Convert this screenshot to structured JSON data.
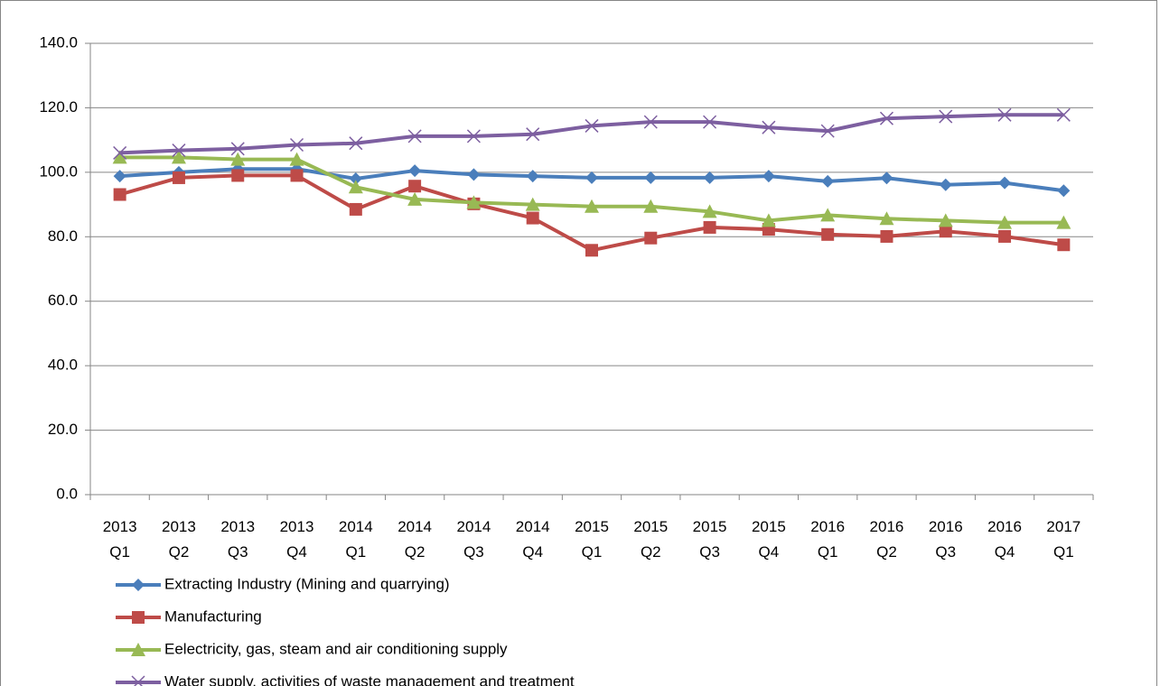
{
  "chart_data": {
    "type": "line",
    "categories": [
      "2013 Q1",
      "2013 Q2",
      "2013 Q3",
      "2013 Q4",
      "2014 Q1",
      "2014 Q2",
      "2014 Q3",
      "2014 Q4",
      "2015 Q1",
      "2015 Q2",
      "2015 Q3",
      "2015 Q4",
      "2016 Q1",
      "2016 Q2",
      "2016 Q3",
      "2016 Q4",
      "2017 Q1"
    ],
    "series": [
      {
        "name": "Extracting Industry (Mining and quarrying)",
        "color": "#4a7ebb",
        "marker": "diamond",
        "values": [
          98.8,
          100,
          101,
          101,
          98,
          100.5,
          99.3,
          98.8,
          98.3,
          98.3,
          98.3,
          98.8,
          97.2,
          98.2,
          96.1,
          96.7,
          94.3
        ]
      },
      {
        "name": "Manufacturing",
        "color": "#be4b48",
        "marker": "square",
        "values": [
          93.1,
          98.3,
          99,
          99,
          88.5,
          95.7,
          90.2,
          85.8,
          75.8,
          79.6,
          82.9,
          82.3,
          80.7,
          80.1,
          81.7,
          80.1,
          77.5
        ]
      },
      {
        "name": "Eelectricity, gas, steam and air conditioning supply",
        "color": "#98b954",
        "marker": "triangle",
        "values": [
          104.6,
          104.6,
          104,
          104,
          95.4,
          91.6,
          90.6,
          90,
          89.4,
          89.4,
          87.8,
          85,
          86.7,
          85.6,
          85,
          84.4,
          84.4
        ]
      },
      {
        "name": "Water supply, activities of waste management and treatment",
        "color": "#7d5fa0",
        "marker": "x",
        "values": [
          106,
          106.8,
          107.3,
          108.5,
          109,
          111.2,
          111.2,
          111.8,
          114.4,
          115.6,
          115.6,
          113.9,
          112.8,
          116.7,
          117.3,
          117.8,
          117.8
        ]
      }
    ],
    "ylim": [
      0,
      140
    ],
    "yticks": [
      {
        "value": 0,
        "label": "0.0"
      },
      {
        "value": 20,
        "label": "20.0"
      },
      {
        "value": 40,
        "label": "40.0"
      },
      {
        "value": 60,
        "label": "60.0"
      },
      {
        "value": 80,
        "label": "80.0"
      },
      {
        "value": 100,
        "label": "100.0"
      },
      {
        "value": 120,
        "label": "120.0"
      },
      {
        "value": 140,
        "label": "140.0"
      }
    ],
    "grid": true,
    "legend": "bottom"
  }
}
